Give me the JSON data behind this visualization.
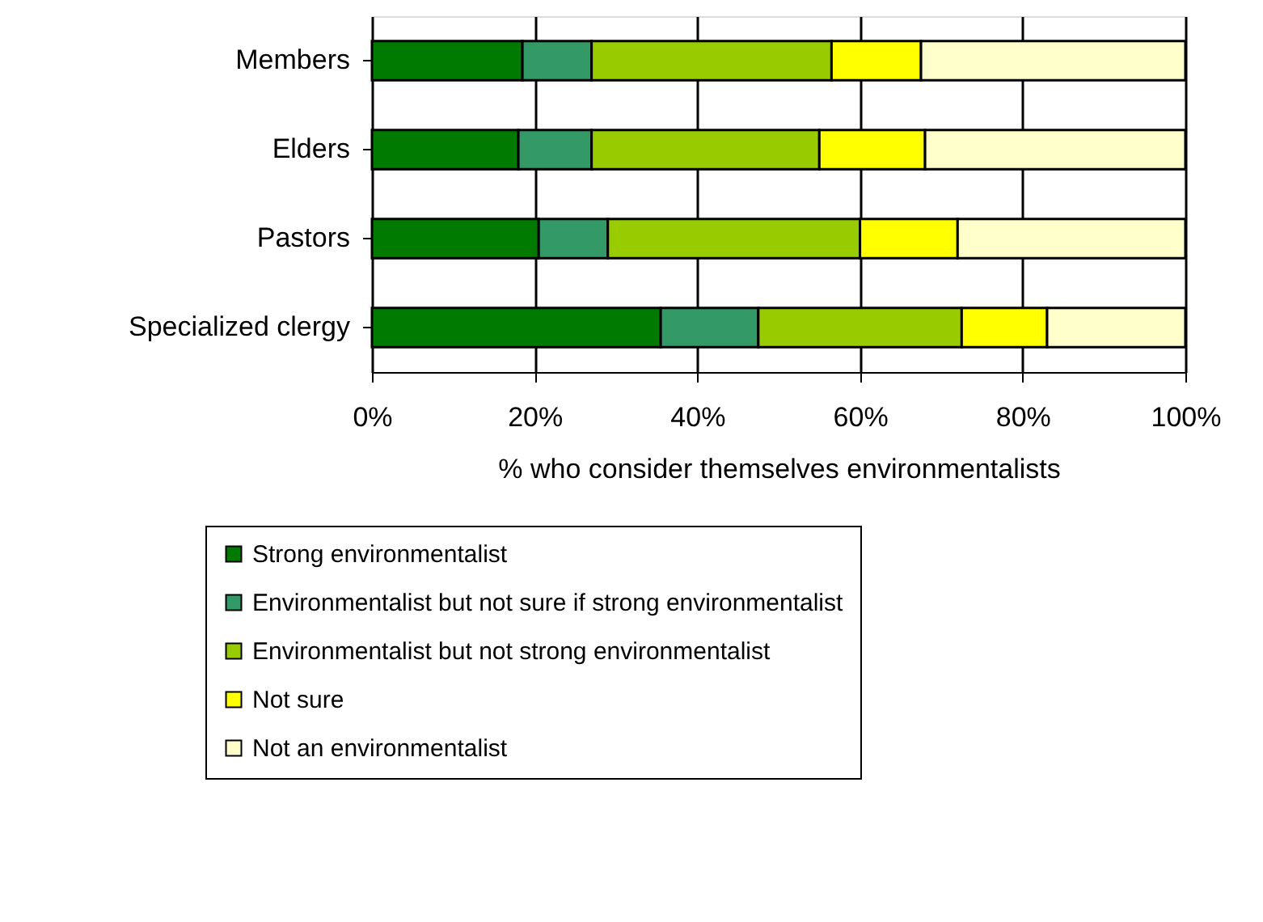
{
  "chart_data": {
    "type": "bar",
    "orientation": "horizontal",
    "stacked": true,
    "categories": [
      "Members",
      "Elders",
      "Pastors",
      "Specialized clergy"
    ],
    "xlabel": "% who consider themselves environmentalists",
    "xlim": [
      0,
      100
    ],
    "xticks": [
      {
        "value": 0,
        "label": "0%"
      },
      {
        "value": 20,
        "label": "20%"
      },
      {
        "value": 40,
        "label": "40%"
      },
      {
        "value": 60,
        "label": "60%"
      },
      {
        "value": 80,
        "label": "80%"
      },
      {
        "value": 100,
        "label": "100%"
      }
    ],
    "grid": "x",
    "legend": "bottom",
    "series": [
      {
        "name": "Strong environmentalist",
        "color": "#007a00",
        "values": [
          18.5,
          18,
          20.5,
          35.5
        ]
      },
      {
        "name": "Environmentalist but not sure if strong environmentalist",
        "color": "#339966",
        "values": [
          8.5,
          9,
          8.5,
          12
        ]
      },
      {
        "name": "Environmentalist but not strong environmentalist",
        "color": "#99cc00",
        "values": [
          29.5,
          28,
          31,
          25
        ]
      },
      {
        "name": "Not sure",
        "color": "#ffff00",
        "values": [
          11,
          13,
          12,
          10.5
        ]
      },
      {
        "name": "Not an environmentalist",
        "color": "#ffffcc",
        "values": [
          32.5,
          32,
          28,
          17
        ]
      }
    ]
  }
}
